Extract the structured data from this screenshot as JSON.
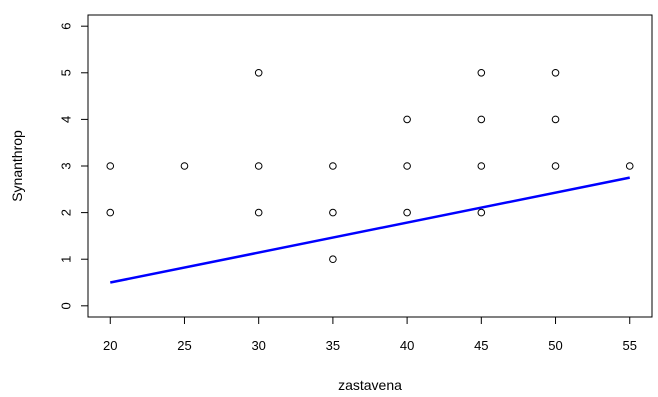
{
  "chart_data": {
    "type": "scatter",
    "xlabel": "zastavena",
    "ylabel": "Synanthrop",
    "xlim": [
      18.5,
      56.5
    ],
    "ylim": [
      -0.24,
      6.24
    ],
    "xticks": [
      20,
      25,
      30,
      35,
      40,
      45,
      50,
      55
    ],
    "yticks": [
      0,
      1,
      2,
      3,
      4,
      5,
      6
    ],
    "grid": false,
    "points": [
      {
        "x": 20,
        "y": 3
      },
      {
        "x": 20,
        "y": 2
      },
      {
        "x": 25,
        "y": 3
      },
      {
        "x": 30,
        "y": 5
      },
      {
        "x": 30,
        "y": 3
      },
      {
        "x": 30,
        "y": 2
      },
      {
        "x": 35,
        "y": 3
      },
      {
        "x": 35,
        "y": 2
      },
      {
        "x": 35,
        "y": 1
      },
      {
        "x": 40,
        "y": 4
      },
      {
        "x": 40,
        "y": 3
      },
      {
        "x": 40,
        "y": 2
      },
      {
        "x": 45,
        "y": 5
      },
      {
        "x": 45,
        "y": 4
      },
      {
        "x": 45,
        "y": 3
      },
      {
        "x": 45,
        "y": 2
      },
      {
        "x": 50,
        "y": 5
      },
      {
        "x": 50,
        "y": 4
      },
      {
        "x": 50,
        "y": 3
      },
      {
        "x": 55,
        "y": 3
      }
    ],
    "trend_line": {
      "x": [
        20,
        55
      ],
      "y": [
        0.5,
        2.75
      ],
      "color": "#0000ff"
    },
    "point_color": "#000000"
  }
}
